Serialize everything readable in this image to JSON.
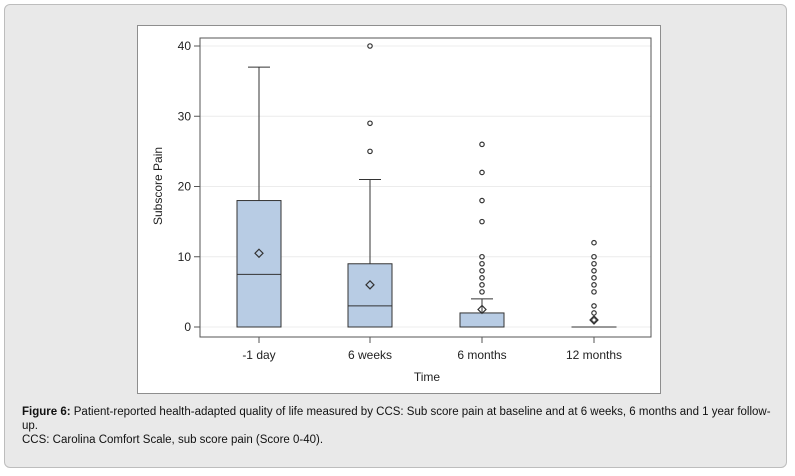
{
  "chart_data": {
    "type": "box",
    "xlabel": "Time",
    "ylabel": "Subscore Pain",
    "ylim": [
      0,
      40
    ],
    "yticks": [
      0,
      10,
      20,
      30,
      40
    ],
    "grid": "horizontal",
    "categories": [
      "-1 day",
      "6 weeks",
      "6 months",
      "12 months"
    ],
    "boxes": [
      {
        "category": "-1 day",
        "min": 0,
        "q1": 0,
        "median": 7.5,
        "q3": 18,
        "max": 37,
        "mean": 10.5,
        "outliers": []
      },
      {
        "category": "6 weeks",
        "min": 0,
        "q1": 0,
        "median": 3,
        "q3": 9,
        "max": 21,
        "mean": 6,
        "outliers": [
          25,
          29,
          40
        ]
      },
      {
        "category": "6 months",
        "min": 0,
        "q1": 0,
        "median": 0,
        "q3": 2,
        "max": 4,
        "mean": 2.5,
        "outliers": [
          5,
          6,
          7,
          8,
          9,
          10,
          15,
          18,
          22,
          26
        ]
      },
      {
        "category": "12 months",
        "min": 0,
        "q1": 0,
        "median": 0,
        "q3": 0,
        "max": 0,
        "mean": 1,
        "outliers": [
          1,
          2,
          3,
          5,
          6,
          7,
          8,
          9,
          10,
          12
        ]
      }
    ],
    "colors": {
      "box_fill": "#b8cce4",
      "box_stroke": "#333333",
      "grid": "#ececec"
    }
  },
  "caption": {
    "label": "Figure 6:",
    "text": " Patient-reported health-adapted quality of life measured by CCS: Sub score pain at baseline and at 6 weeks, 6 months and 1 year follow-up.",
    "note": "CCS: Carolina Comfort Scale, sub score pain (Score 0-40)."
  }
}
